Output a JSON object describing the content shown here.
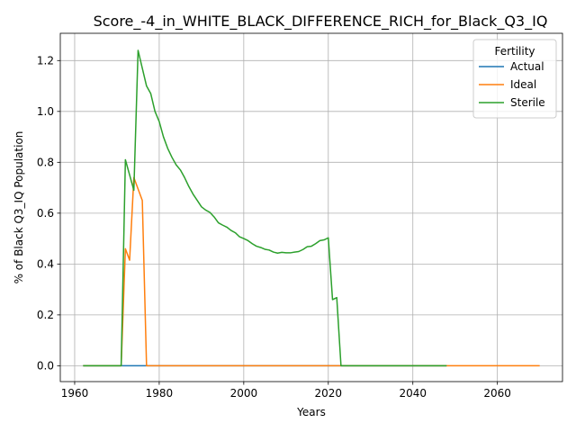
{
  "chart_data": {
    "type": "line",
    "title": "Score_-4_in_WHITE_BLACK_DIFFERENCE_RICH_for_Black_Q3_IQ",
    "xlabel": "Years",
    "ylabel": "% of Black Q3_IQ Population",
    "xlim": [
      1956.6,
      2075.4
    ],
    "ylim": [
      -0.0623,
      1.3072
    ],
    "x_ticks": [
      1960,
      1980,
      2000,
      2020,
      2040,
      2060
    ],
    "y_ticks": [
      0.0,
      0.2,
      0.4,
      0.6,
      0.8,
      1.0,
      1.2
    ],
    "y_tick_labels": [
      "0.0",
      "0.2",
      "0.4",
      "0.6",
      "0.8",
      "1.0",
      "1.2"
    ],
    "grid": true,
    "legend": {
      "title": "Fertility",
      "placement": "top-right"
    },
    "series": [
      {
        "name": "Actual",
        "color": "#1f77b4",
        "points": [
          [
            1962,
            0.0
          ],
          [
            1977,
            0.0
          ],
          [
            2048,
            0.0
          ]
        ]
      },
      {
        "name": "Ideal",
        "color": "#ff7f0e",
        "points": [
          [
            1962,
            0.0
          ],
          [
            1971,
            0.0
          ],
          [
            1972,
            0.46
          ],
          [
            1973,
            0.415
          ],
          [
            1974,
            0.74
          ],
          [
            1976,
            0.65
          ],
          [
            1977,
            0.0
          ],
          [
            2070,
            0.0
          ]
        ]
      },
      {
        "name": "Sterile",
        "color": "#2ca02c",
        "points": [
          [
            1962,
            0.0
          ],
          [
            1971,
            0.0
          ],
          [
            1972,
            0.81
          ],
          [
            1973,
            0.75
          ],
          [
            1974,
            0.69
          ],
          [
            1975,
            1.24
          ],
          [
            1976,
            1.17
          ],
          [
            1977,
            1.1
          ],
          [
            1978,
            1.07
          ],
          [
            1979,
            1.0
          ],
          [
            1980,
            0.96
          ],
          [
            1981,
            0.9
          ],
          [
            1982,
            0.855
          ],
          [
            1983,
            0.82
          ],
          [
            1984,
            0.79
          ],
          [
            1985,
            0.77
          ],
          [
            1986,
            0.74
          ],
          [
            1987,
            0.705
          ],
          [
            1988,
            0.675
          ],
          [
            1989,
            0.65
          ],
          [
            1990,
            0.625
          ],
          [
            1991,
            0.612
          ],
          [
            1992,
            0.603
          ],
          [
            1993,
            0.585
          ],
          [
            1994,
            0.562
          ],
          [
            1995,
            0.553
          ],
          [
            1996,
            0.545
          ],
          [
            1997,
            0.532
          ],
          [
            1998,
            0.523
          ],
          [
            1999,
            0.507
          ],
          [
            2000,
            0.5
          ],
          [
            2001,
            0.492
          ],
          [
            2002,
            0.48
          ],
          [
            2003,
            0.47
          ],
          [
            2004,
            0.465
          ],
          [
            2005,
            0.458
          ],
          [
            2006,
            0.455
          ],
          [
            2007,
            0.447
          ],
          [
            2008,
            0.443
          ],
          [
            2009,
            0.446
          ],
          [
            2010,
            0.444
          ],
          [
            2011,
            0.444
          ],
          [
            2012,
            0.447
          ],
          [
            2013,
            0.449
          ],
          [
            2014,
            0.457
          ],
          [
            2015,
            0.468
          ],
          [
            2016,
            0.47
          ],
          [
            2017,
            0.48
          ],
          [
            2018,
            0.492
          ],
          [
            2019,
            0.495
          ],
          [
            2020,
            0.503
          ],
          [
            2021,
            0.26
          ],
          [
            2022,
            0.268
          ],
          [
            2023,
            0.0
          ],
          [
            2048,
            0.0
          ]
        ]
      }
    ]
  }
}
